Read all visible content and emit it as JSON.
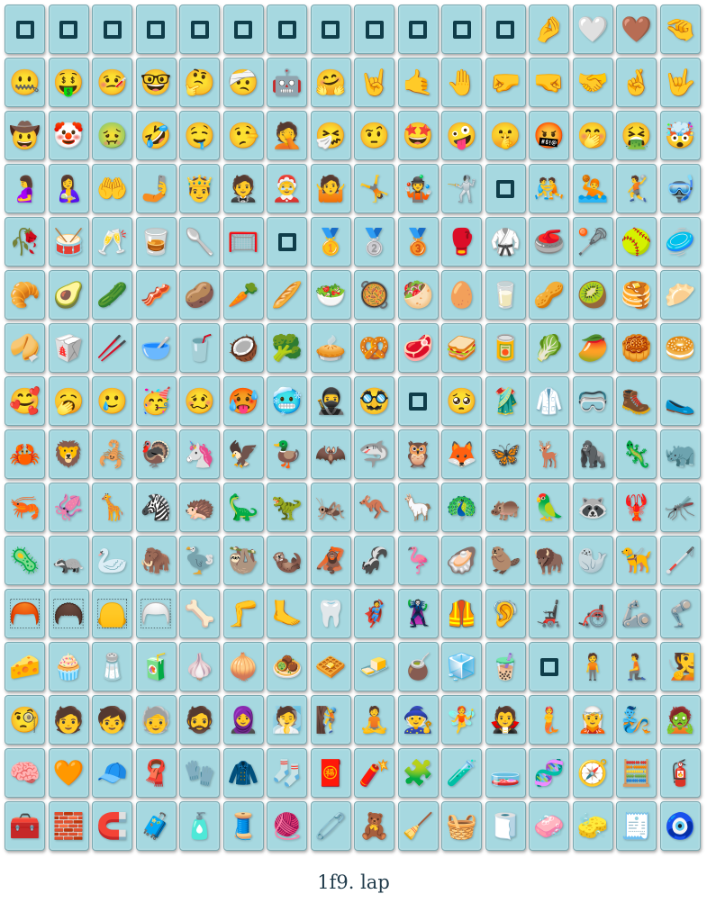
{
  "caption": "1f9. lap",
  "tiles": [
    "",
    "",
    "",
    "",
    "",
    "",
    "",
    "",
    "",
    "",
    "",
    "",
    "🤌",
    "🤍",
    "🤎",
    "🤏",
    "🤐",
    "🤑",
    "🤒",
    "🤓",
    "🤔",
    "🤕",
    "🤖",
    "🤗",
    "🤘",
    "🤙",
    "🤚",
    "🤛",
    "🤜",
    "🤝",
    "🤞",
    "🤟",
    "🤠",
    "🤡",
    "🤢",
    "🤣",
    "🤤",
    "🤥",
    "🤦",
    "🤧",
    "🤨",
    "🤩",
    "🤪",
    "🤫",
    "🤬",
    "🤭",
    "🤮",
    "🤯",
    "🤰",
    "🤱",
    "🤲",
    "🤳",
    "🤴",
    "🤵",
    "🤶",
    "🤷",
    "🤸",
    "🤹",
    "🤺",
    "",
    "🤼",
    "🤽",
    "🤾",
    "🤿",
    "🥀",
    "🥁",
    "🥂",
    "🥃",
    "🥄",
    "🥅",
    "",
    "🥇",
    "🥈",
    "🥉",
    "🥊",
    "🥋",
    "🥌",
    "🥍",
    "🥎",
    "🥏",
    "🥐",
    "🥑",
    "🥒",
    "🥓",
    "🥔",
    "🥕",
    "🥖",
    "🥗",
    "🥘",
    "🥙",
    "🥚",
    "🥛",
    "🥜",
    "🥝",
    "🥞",
    "🥟",
    "🥠",
    "🥡",
    "🥢",
    "🥣",
    "🥤",
    "🥥",
    "🥦",
    "🥧",
    "🥨",
    "🥩",
    "🥪",
    "🥫",
    "🥬",
    "🥭",
    "🥮",
    "🥯",
    "🥰",
    "🥱",
    "🥲",
    "🥳",
    "🥴",
    "🥵",
    "🥶",
    "🥷",
    "🥸",
    "",
    "🥺",
    "🥻",
    "🥼",
    "🥽",
    "🥾",
    "🥿",
    "🦀",
    "🦁",
    "🦂",
    "🦃",
    "🦄",
    "🦅",
    "🦆",
    "🦇",
    "🦈",
    "🦉",
    "🦊",
    "🦋",
    "🦌",
    "🦍",
    "🦎",
    "🦏",
    "🦐",
    "🦑",
    "🦒",
    "🦓",
    "🦔",
    "🦕",
    "🦖",
    "🦗",
    "🦘",
    "🦙",
    "🦚",
    "🦛",
    "🦜",
    "🦝",
    "🦞",
    "🦟",
    "🦠",
    "🦡",
    "🦢",
    "🦣",
    "🦤",
    "🦥",
    "🦦",
    "🦧",
    "🦨",
    "🦩",
    "🦪",
    "🦫",
    "🦬",
    "🦭",
    "🦮",
    "🦯",
    "🦰",
    "🦱",
    "🦲",
    "🦳",
    "🦴",
    "🦵",
    "🦶",
    "🦷",
    "🦸",
    "🦹",
    "🦺",
    "🦻",
    "🦼",
    "🦽",
    "🦾",
    "🦿",
    "🧀",
    "🧁",
    "🧂",
    "🧃",
    "🧄",
    "🧅",
    "🧆",
    "🧇",
    "🧈",
    "🧉",
    "🧊",
    "🧋",
    "",
    "🧍",
    "🧎",
    "🧏",
    "🧐",
    "🧑",
    "🧒",
    "🧓",
    "🧔",
    "🧕",
    "🧖",
    "🧗",
    "🧘",
    "🧙",
    "🧚",
    "🧛",
    "🧜",
    "🧝",
    "🧞",
    "🧟",
    "🧠",
    "🧡",
    "🧢",
    "🧣",
    "🧤",
    "🧥",
    "🧦",
    "🧧",
    "🧨",
    "🧩",
    "🧪",
    "🧫",
    "🧬",
    "🧭",
    "🧮",
    "🧯",
    "🧰",
    "🧱",
    "🧲",
    "🧳",
    "🧴",
    "🧵",
    "🧶",
    "🧷",
    "🧸",
    "🧹",
    "🧺",
    "🧻",
    "🧼",
    "🧽",
    "🧾",
    "🧿"
  ],
  "colors": {
    "tile_background": "#a6d8e0",
    "missing_glyph": "#0f3d4a",
    "caption_text": "#1f3a4a"
  }
}
